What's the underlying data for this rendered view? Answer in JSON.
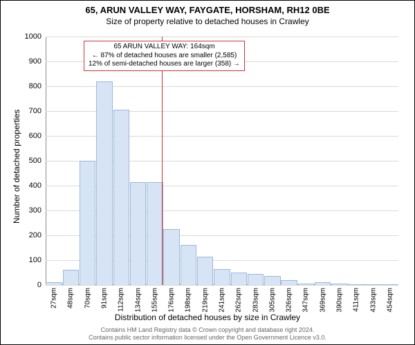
{
  "titles": {
    "main": "65, ARUN VALLEY WAY, FAYGATE, HORSHAM, RH12 0BE",
    "sub": "Size of property relative to detached houses in Crawley"
  },
  "axes": {
    "ylabel": "Number of detached properties",
    "xlabel": "Distribution of detached houses by size in Crawley"
  },
  "chart": {
    "type": "histogram",
    "ylim": [
      0,
      1000
    ],
    "ytick_step": 100,
    "yticks": [
      0,
      100,
      200,
      300,
      400,
      500,
      600,
      700,
      800,
      900,
      1000
    ],
    "categories": [
      "27sqm",
      "48sqm",
      "70sqm",
      "91sqm",
      "112sqm",
      "134sqm",
      "155sqm",
      "176sqm",
      "198sqm",
      "219sqm",
      "241sqm",
      "262sqm",
      "283sqm",
      "305sqm",
      "326sqm",
      "347sqm",
      "369sqm",
      "390sqm",
      "411sqm",
      "433sqm",
      "454sqm"
    ],
    "values": [
      10,
      60,
      500,
      820,
      705,
      415,
      415,
      225,
      160,
      115,
      65,
      50,
      45,
      35,
      20,
      5,
      10,
      5,
      0,
      0,
      0
    ],
    "bar_color": "#d6e4f5",
    "bar_border": "#9db8d9",
    "grid_color": "#d9d9d9",
    "background_color": "#ffffff",
    "vline_x_label": "164sqm",
    "vline_color": "#cc3333",
    "axis_color": "#888888"
  },
  "annotation": {
    "border_color": "#cc3333",
    "background": "#ffffff",
    "lines": {
      "l1": "65 ARUN VALLEY WAY: 164sqm",
      "l2": "← 87% of detached houses are smaller (2,585)",
      "l3": "12% of semi-detached houses are larger (358) →"
    }
  },
  "footer": {
    "l1": "Contains HM Land Registry data © Crown copyright and database right 2024.",
    "l2": "Contains public sector information licensed under the Open Government Licence v3.0."
  },
  "style": {
    "title_fontsize": 13,
    "sub_fontsize": 12,
    "axis_label_fontsize": 12,
    "tick_fontsize": 11,
    "xtick_fontsize": 10,
    "annot_fontsize": 10,
    "footer_fontsize": 9,
    "footer_color": "#666666"
  }
}
